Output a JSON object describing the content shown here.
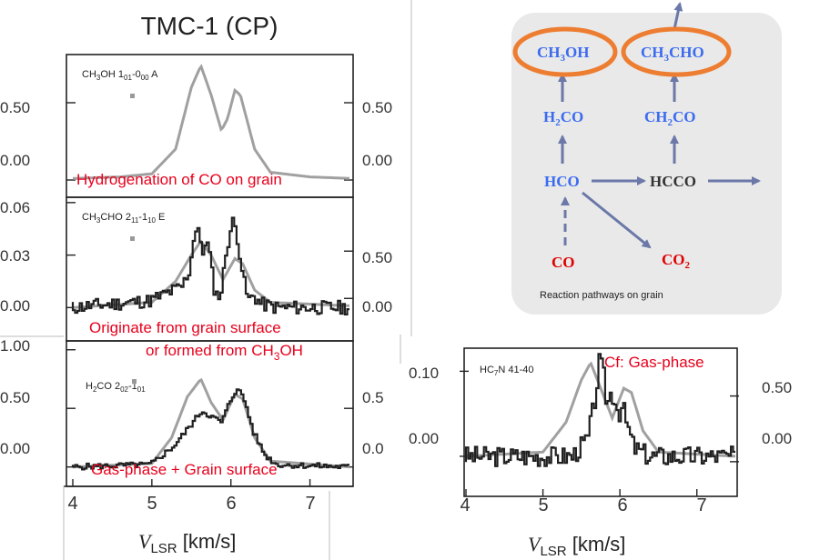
{
  "slide_title": "TMC-1 (CP)",
  "colors": {
    "annotation": "#e8001c",
    "grain_species": "#3b6cf0",
    "reactant": "#e00000",
    "highlight": "#ed7d31",
    "arrow": "#6b78a8",
    "observed": "#202020",
    "model": "#a0a0a0",
    "panel_bg": "#e9e9e9"
  },
  "chart_data": [
    {
      "type": "line",
      "panel_label": [
        "CH",
        "3",
        "OH 1",
        "01",
        "-0",
        "00",
        " A"
      ],
      "annotation": "Hydrogenation of CO on grain",
      "left_ticks": [
        "0.50",
        "0.00"
      ],
      "right_ticks": [
        "0.50",
        "0.00"
      ],
      "left_tick_values": [
        0.5,
        0.0
      ],
      "ylim": [
        -0.1,
        0.8
      ],
      "xlim": [
        4.0,
        7.5
      ],
      "series": [
        {
          "style": "model",
          "x": [
            4.0,
            4.6,
            5.0,
            5.3,
            5.5,
            5.62,
            5.75,
            5.88,
            5.96,
            6.05,
            6.12,
            6.3,
            6.5,
            7.0,
            7.5
          ],
          "y": [
            0.01,
            0.02,
            0.04,
            0.2,
            0.6,
            0.74,
            0.55,
            0.32,
            0.4,
            0.58,
            0.55,
            0.2,
            0.05,
            0.02,
            0.01
          ]
        }
      ]
    },
    {
      "type": "line",
      "panel_label": [
        "CH",
        "3",
        "CHO 2",
        "11",
        "-1",
        "10",
        " E"
      ],
      "annotation": "Originate from grain surface",
      "annotation2_parts": [
        "or formed from CH",
        "3",
        "OH"
      ],
      "left_ticks": [
        "0.06",
        "0.03",
        "0.00"
      ],
      "right_ticks": [
        "0.50",
        "0.00"
      ],
      "left_tick_values": [
        0.06,
        0.03,
        0.0
      ],
      "right_tick_values": [
        0.5,
        0.0
      ],
      "right_ylim": [
        -0.43,
        1.05
      ],
      "ylim": [
        -0.018,
        0.062
      ],
      "xlim": [
        4.0,
        7.5
      ],
      "series": [
        {
          "style": "model",
          "x": [
            4.0,
            5.0,
            5.3,
            5.5,
            5.62,
            5.75,
            5.9,
            6.05,
            6.15,
            6.3,
            6.5,
            7.5
          ],
          "y": [
            0.0,
            0.003,
            0.015,
            0.03,
            0.038,
            0.03,
            0.016,
            0.028,
            0.025,
            0.01,
            0.003,
            0.001
          ]
        },
        {
          "style": "observed",
          "noise_seed": 11,
          "noise_amp": 0.004,
          "x": [
            4.0,
            5.0,
            5.4,
            5.5,
            5.55,
            5.6,
            5.65,
            5.7,
            5.75,
            5.8,
            5.85,
            5.9,
            5.95,
            6.0,
            6.05,
            6.1,
            6.15,
            6.2,
            6.25,
            6.3,
            6.4,
            6.6,
            7.5
          ],
          "y": [
            0.0,
            0.004,
            0.012,
            0.022,
            0.042,
            0.047,
            0.028,
            0.04,
            0.03,
            0.012,
            0.006,
            0.01,
            0.03,
            0.042,
            0.05,
            0.04,
            0.025,
            0.01,
            0.004,
            0.007,
            0.002,
            0.0,
            0.0
          ]
        }
      ]
    },
    {
      "type": "line",
      "panel_label": [
        "H",
        "2",
        "CO 2",
        "02",
        "-1",
        "01"
      ],
      "annotation": "Gas-phase + Grain surface",
      "left_ticks": [
        "1.00",
        "0.50",
        "0.00"
      ],
      "right_ticks": [
        "0.5",
        "0.0"
      ],
      "left_tick_values": [
        1.0,
        0.5,
        0.0
      ],
      "right_tick_values": [
        0.5,
        0.0
      ],
      "right_ylim": [
        -0.15,
        1.06
      ],
      "ylim": [
        -0.15,
        1.06
      ],
      "xlim": [
        4.0,
        7.5
      ],
      "x_ticks": [
        "4",
        "5",
        "6",
        "7"
      ],
      "x_tick_values": [
        4,
        5,
        6,
        7
      ],
      "xlabel_main": "V",
      "xlabel_sub": "LSR",
      "xlabel_unit": " [km/s]",
      "series": [
        {
          "style": "model",
          "x": [
            4.0,
            5.0,
            5.25,
            5.45,
            5.62,
            5.75,
            5.9,
            6.05,
            6.15,
            6.3,
            6.5,
            7.5
          ],
          "y": [
            0.0,
            0.03,
            0.25,
            0.6,
            0.75,
            0.55,
            0.4,
            0.62,
            0.58,
            0.25,
            0.05,
            0.0
          ]
        },
        {
          "style": "observed",
          "noise_seed": 5,
          "noise_amp": 0.025,
          "x": [
            4.0,
            5.0,
            5.3,
            5.5,
            5.65,
            5.8,
            5.9,
            6.0,
            6.1,
            6.2,
            6.3,
            6.45,
            6.6,
            7.5
          ],
          "y": [
            0.0,
            0.02,
            0.18,
            0.35,
            0.48,
            0.42,
            0.38,
            0.55,
            0.68,
            0.55,
            0.3,
            0.1,
            0.02,
            0.0
          ]
        }
      ]
    },
    {
      "type": "line",
      "panel_label": [
        "HC",
        "7",
        "N 41-40"
      ],
      "annotation": "Cf: Gas-phase",
      "left_ticks": [
        "0.10",
        "0.00"
      ],
      "right_ticks": [
        "0.50",
        "0.00"
      ],
      "left_tick_values": [
        0.1,
        0.0
      ],
      "right_tick_values": [
        0.5,
        0.0
      ],
      "right_ylim": [
        -0.25,
        0.85
      ],
      "ylim": [
        -0.045,
        0.125
      ],
      "xlim": [
        4.0,
        7.5
      ],
      "x_ticks": [
        "4",
        "5",
        "6",
        "7"
      ],
      "x_tick_values": [
        4,
        5,
        6,
        7
      ],
      "xlabel_main": "V",
      "xlabel_sub": "LSR",
      "xlabel_unit": " [km/s]",
      "series": [
        {
          "style": "model",
          "x": [
            4.0,
            5.0,
            5.3,
            5.5,
            5.62,
            5.75,
            5.9,
            6.05,
            6.15,
            6.3,
            6.5,
            7.5
          ],
          "y": [
            0.0,
            0.005,
            0.04,
            0.09,
            0.11,
            0.08,
            0.045,
            0.08,
            0.075,
            0.03,
            0.005,
            0.0
          ]
        },
        {
          "style": "observed",
          "noise_seed": 3,
          "noise_amp": 0.012,
          "x": [
            4.0,
            5.4,
            5.6,
            5.7,
            5.75,
            5.8,
            5.85,
            5.9,
            5.95,
            6.0,
            6.05,
            6.1,
            6.2,
            6.4,
            7.5
          ],
          "y": [
            0.0,
            0.0,
            0.02,
            0.07,
            0.11,
            0.1,
            0.06,
            0.075,
            0.07,
            0.05,
            0.06,
            0.04,
            0.01,
            0.0,
            0.0
          ]
        }
      ]
    }
  ],
  "diagram": {
    "caption": "Reaction pathways on grain",
    "species": {
      "ch3oh": [
        "CH",
        "3",
        "OH"
      ],
      "ch3cho": [
        "CH",
        "3",
        "CHO"
      ],
      "h2co": [
        "H",
        "2",
        "CO"
      ],
      "ch2co": [
        "CH",
        "2",
        "CO"
      ],
      "hco": [
        "HCO"
      ],
      "hcco": [
        "HCCO"
      ],
      "co": [
        "CO"
      ],
      "co2": [
        "CO",
        "2",
        ""
      ]
    }
  }
}
